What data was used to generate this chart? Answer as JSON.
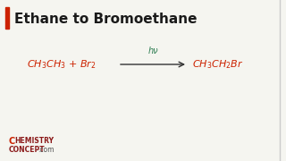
{
  "title": "Ethane to Bromoethane",
  "title_color": "#1a1a1a",
  "title_fontsize": 11,
  "background_color": "#f5f5f0",
  "reactant": "$\\mathit{CH_3CH_3}$ + $\\mathit{Br_2}$",
  "product": "$\\mathit{CH_3CH_2Br}$",
  "condition": "hν",
  "reaction_color": "#cc2200",
  "condition_color": "#2e7d52",
  "arrow_color": "#333333",
  "accent_bar_color": "#cc2200",
  "logo_C_color": "#cc2200",
  "logo_rest_color": "#8b1a1a",
  "logo_dot_color": "#555555",
  "figwidth": 3.2,
  "figheight": 1.8,
  "dpi": 100
}
